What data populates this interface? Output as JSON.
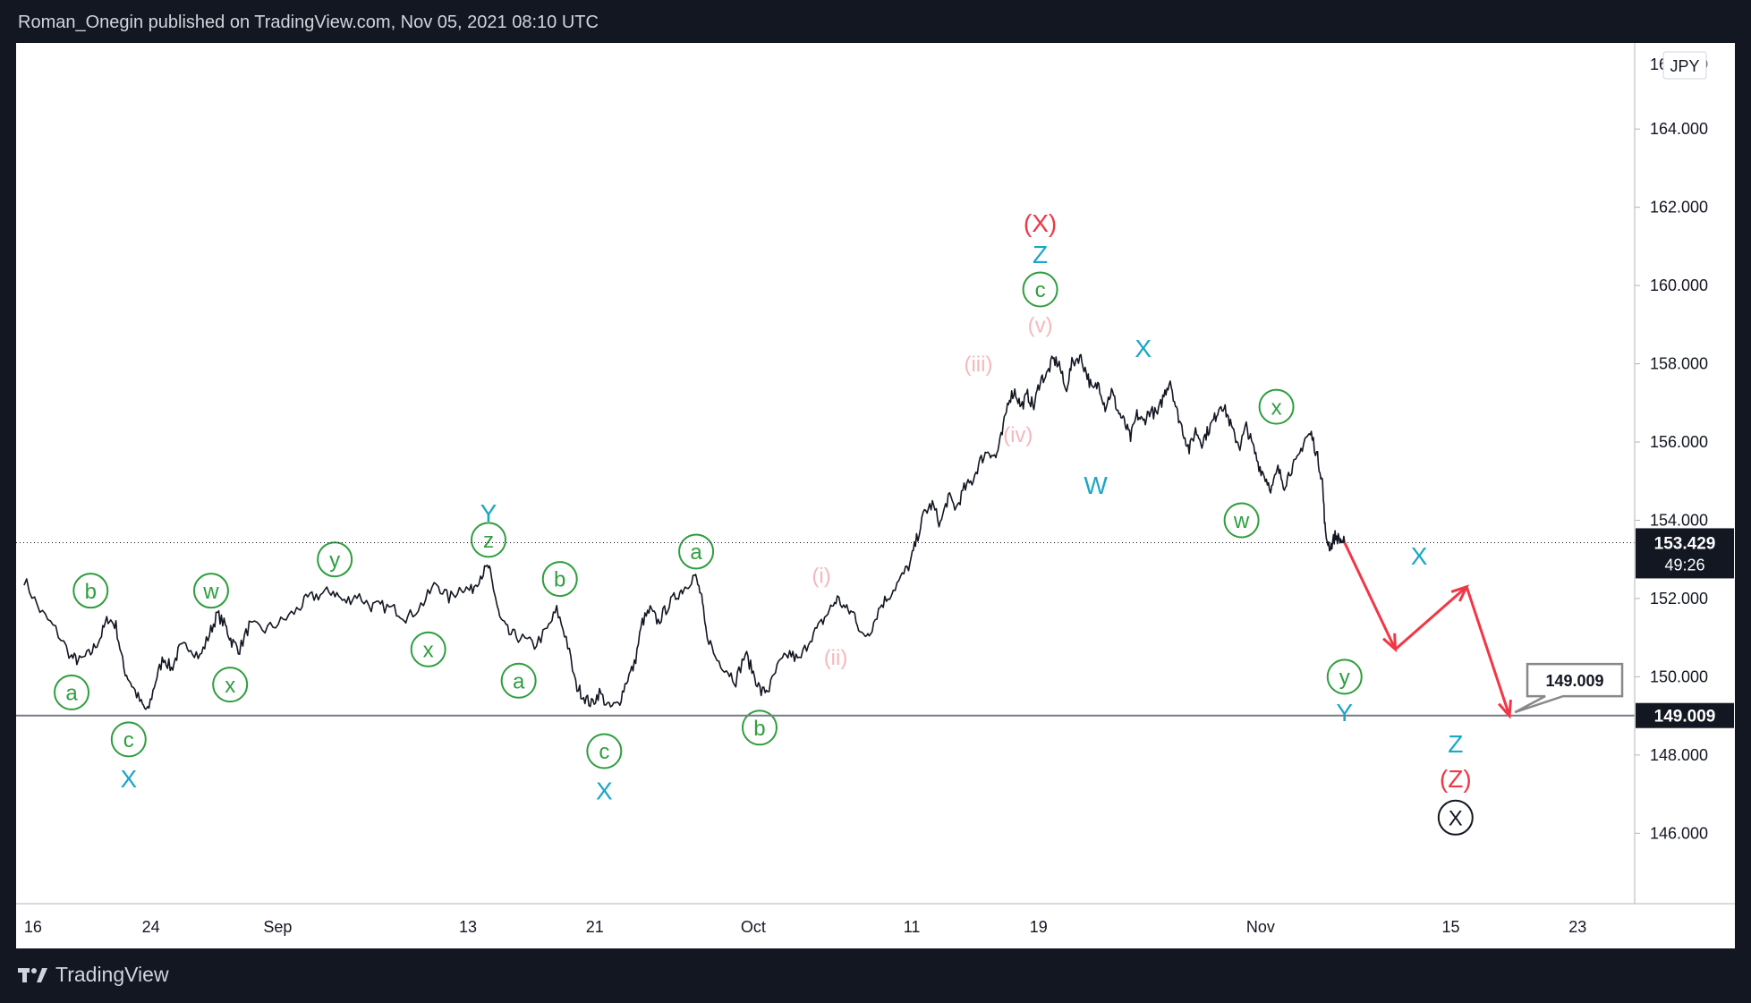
{
  "header": {
    "publisher_line": "Roman_Onegin published on TradingView.com, Nov 05, 2021 08:10 UTC"
  },
  "footer": {
    "brand": "TradingView"
  },
  "currency_badge": "JPY",
  "current_price": {
    "value": "153.429",
    "countdown": "49:26"
  },
  "target_price": {
    "value": "149.009"
  },
  "chart_data": {
    "type": "line",
    "x_ticks": [
      "16",
      "24",
      "Sep",
      "13",
      "21",
      "Oct",
      "11",
      "19",
      "Nov",
      "15",
      "23"
    ],
    "x_tick_days": [
      0,
      8,
      16,
      28,
      36,
      46,
      56,
      64,
      78,
      90,
      98
    ],
    "y_ticks": [
      "146.000",
      "148.000",
      "150.000",
      "152.000",
      "154.000",
      "156.000",
      "158.000",
      "160.000",
      "162.000",
      "164.000"
    ],
    "ylim": [
      144.2,
      166.2
    ],
    "xlim": [
      -0.5,
      101.6
    ],
    "last_price": 153.429,
    "support_level": 149.009,
    "colors": {
      "price_line": "#131722",
      "minor_wave": "#2e9e3e",
      "intermediate_wave": "#1aa7c8",
      "subwave": "#f5b7bd",
      "primary_wave": "#f23645",
      "projection": "#f23645"
    },
    "price_path": [
      [
        0,
        152.5
      ],
      [
        1,
        151.7
      ],
      [
        2,
        151.2
      ],
      [
        3,
        150.5
      ],
      [
        3.5,
        150.4
      ],
      [
        4.2,
        150.6
      ],
      [
        4.8,
        151.0
      ],
      [
        5.3,
        151.5
      ],
      [
        5.8,
        151.3
      ],
      [
        6.3,
        150.2
      ],
      [
        6.8,
        149.8
      ],
      [
        7.4,
        149.3
      ],
      [
        7.8,
        149.1
      ],
      [
        8.3,
        149.9
      ],
      [
        8.8,
        150.5
      ],
      [
        9.3,
        150.2
      ],
      [
        9.8,
        150.7
      ],
      [
        10.4,
        150.8
      ],
      [
        11.1,
        150.5
      ],
      [
        11.7,
        151.1
      ],
      [
        12.2,
        151.6
      ],
      [
        12.7,
        151.3
      ],
      [
        13.1,
        150.9
      ],
      [
        13.6,
        150.7
      ],
      [
        14.2,
        151.3
      ],
      [
        15.2,
        151.2
      ],
      [
        16.2,
        151.4
      ],
      [
        17.2,
        151.7
      ],
      [
        17.9,
        152.0
      ],
      [
        18.7,
        152.1
      ],
      [
        19.5,
        152.2
      ],
      [
        20.2,
        151.9
      ],
      [
        21.0,
        152.1
      ],
      [
        21.9,
        151.8
      ],
      [
        22.6,
        151.8
      ],
      [
        23.5,
        151.7
      ],
      [
        24.2,
        151.5
      ],
      [
        25.2,
        151.9
      ],
      [
        26.0,
        152.4
      ],
      [
        26.8,
        152.0
      ],
      [
        27.6,
        152.3
      ],
      [
        28.2,
        152.2
      ],
      [
        28.8,
        152.6
      ],
      [
        29.3,
        152.8
      ],
      [
        29.6,
        152.3
      ],
      [
        30.0,
        151.5
      ],
      [
        30.6,
        151.1
      ],
      [
        31.3,
        151.0
      ],
      [
        32.2,
        150.8
      ],
      [
        33.0,
        151.2
      ],
      [
        33.6,
        151.7
      ],
      [
        34.2,
        151.0
      ],
      [
        34.8,
        149.8
      ],
      [
        35.3,
        149.5
      ],
      [
        35.8,
        149.3
      ],
      [
        36.3,
        149.6
      ],
      [
        36.9,
        149.2
      ],
      [
        37.5,
        149.3
      ],
      [
        38.0,
        149.9
      ],
      [
        38.5,
        150.3
      ],
      [
        39.0,
        151.4
      ],
      [
        39.5,
        151.7
      ],
      [
        40.0,
        151.4
      ],
      [
        40.6,
        151.8
      ],
      [
        41.2,
        152.1
      ],
      [
        41.7,
        152.3
      ],
      [
        42.3,
        152.6
      ],
      [
        42.7,
        152.1
      ],
      [
        43.0,
        151.2
      ],
      [
        43.6,
        150.5
      ],
      [
        44.3,
        150.2
      ],
      [
        44.9,
        149.9
      ],
      [
        45.5,
        150.6
      ],
      [
        46.0,
        150.1
      ],
      [
        46.5,
        149.6
      ],
      [
        47.0,
        149.7
      ],
      [
        47.6,
        150.3
      ],
      [
        48.3,
        150.6
      ],
      [
        48.9,
        150.4
      ],
      [
        49.6,
        151.0
      ],
      [
        50.2,
        151.3
      ],
      [
        50.8,
        151.7
      ],
      [
        51.3,
        152.0
      ],
      [
        51.9,
        151.7
      ],
      [
        52.4,
        151.6
      ],
      [
        52.9,
        151.0
      ],
      [
        53.4,
        151.2
      ],
      [
        54.0,
        151.8
      ],
      [
        54.6,
        152.1
      ],
      [
        55.3,
        152.5
      ],
      [
        55.9,
        152.9
      ],
      [
        56.3,
        153.5
      ],
      [
        56.8,
        154.2
      ],
      [
        57.3,
        154.4
      ],
      [
        57.8,
        153.9
      ],
      [
        58.3,
        154.6
      ],
      [
        58.8,
        154.3
      ],
      [
        59.3,
        154.8
      ],
      [
        59.8,
        155.0
      ],
      [
        60.3,
        155.5
      ],
      [
        60.8,
        155.8
      ],
      [
        61.3,
        155.6
      ],
      [
        61.7,
        156.2
      ],
      [
        62.1,
        157.1
      ],
      [
        62.5,
        157.3
      ],
      [
        62.9,
        156.9
      ],
      [
        63.3,
        157.2
      ],
      [
        63.7,
        156.9
      ],
      [
        64.1,
        157.6
      ],
      [
        64.5,
        157.7
      ],
      [
        64.9,
        158.1
      ],
      [
        65.3,
        158.0
      ],
      [
        65.7,
        157.3
      ],
      [
        66.1,
        158.0
      ],
      [
        66.6,
        158.2
      ],
      [
        67.0,
        157.8
      ],
      [
        67.4,
        157.3
      ],
      [
        67.8,
        157.5
      ],
      [
        68.2,
        156.9
      ],
      [
        68.6,
        157.3
      ],
      [
        69.0,
        156.8
      ],
      [
        69.4,
        156.5
      ],
      [
        69.8,
        156.1
      ],
      [
        70.2,
        156.7
      ],
      [
        70.6,
        156.5
      ],
      [
        71.0,
        156.8
      ],
      [
        71.5,
        156.7
      ],
      [
        71.9,
        157.2
      ],
      [
        72.3,
        157.6
      ],
      [
        72.7,
        156.8
      ],
      [
        73.1,
        156.3
      ],
      [
        73.5,
        155.8
      ],
      [
        73.9,
        156.3
      ],
      [
        74.3,
        156.0
      ],
      [
        74.7,
        156.3
      ],
      [
        75.1,
        156.6
      ],
      [
        75.5,
        157.0
      ],
      [
        75.9,
        156.7
      ],
      [
        76.3,
        156.2
      ],
      [
        76.7,
        155.9
      ],
      [
        77.1,
        156.4
      ],
      [
        77.5,
        155.9
      ],
      [
        77.9,
        155.4
      ],
      [
        78.3,
        155.1
      ],
      [
        78.7,
        154.8
      ],
      [
        79.1,
        155.3
      ],
      [
        79.5,
        154.9
      ],
      [
        79.9,
        155.3
      ],
      [
        80.3,
        155.5
      ],
      [
        80.8,
        156.1
      ],
      [
        81.2,
        156.2
      ],
      [
        81.6,
        155.6
      ],
      [
        81.9,
        155.0
      ],
      [
        82.1,
        153.6
      ],
      [
        82.4,
        153.3
      ],
      [
        82.7,
        153.6
      ],
      [
        83.0,
        153.5
      ],
      [
        83.3,
        153.43
      ]
    ],
    "projection_path": [
      [
        83.3,
        153.43
      ],
      [
        86.5,
        150.7
      ],
      [
        91.0,
        152.3
      ],
      [
        93.7,
        149.0
      ]
    ]
  },
  "wave_labels": [
    {
      "text": "a",
      "circle": true,
      "wave": "minor",
      "x": 3.0,
      "y": 149.6
    },
    {
      "text": "b",
      "circle": true,
      "wave": "minor",
      "x": 4.2,
      "y": 152.2
    },
    {
      "text": "c",
      "circle": true,
      "wave": "minor",
      "x": 6.6,
      "y": 148.4
    },
    {
      "text": "X",
      "circle": false,
      "wave": "intermediate",
      "x": 6.6,
      "y": 147.4
    },
    {
      "text": "w",
      "circle": true,
      "wave": "minor",
      "x": 11.8,
      "y": 152.2
    },
    {
      "text": "x",
      "circle": true,
      "wave": "minor",
      "x": 13.0,
      "y": 149.8
    },
    {
      "text": "y",
      "circle": true,
      "wave": "minor",
      "x": 19.6,
      "y": 153.0
    },
    {
      "text": "x",
      "circle": true,
      "wave": "minor",
      "x": 25.5,
      "y": 150.7
    },
    {
      "text": "Y",
      "circle": false,
      "wave": "intermediate",
      "x": 29.3,
      "y": 154.2
    },
    {
      "text": "z",
      "circle": true,
      "wave": "minor",
      "x": 29.3,
      "y": 153.5
    },
    {
      "text": "a",
      "circle": true,
      "wave": "minor",
      "x": 31.2,
      "y": 149.9
    },
    {
      "text": "b",
      "circle": true,
      "wave": "minor",
      "x": 33.8,
      "y": 152.5
    },
    {
      "text": "c",
      "circle": true,
      "wave": "minor",
      "x": 36.6,
      "y": 148.1
    },
    {
      "text": "X",
      "circle": false,
      "wave": "intermediate",
      "x": 36.6,
      "y": 147.1
    },
    {
      "text": "a",
      "circle": true,
      "wave": "minor",
      "x": 42.4,
      "y": 153.2
    },
    {
      "text": "b",
      "circle": true,
      "wave": "minor",
      "x": 46.4,
      "y": 148.7
    },
    {
      "text": "(i)",
      "circle": false,
      "wave": "subwave",
      "x": 50.3,
      "y": 152.6
    },
    {
      "text": "(ii)",
      "circle": false,
      "wave": "subwave",
      "x": 51.2,
      "y": 150.5
    },
    {
      "text": "(iii)",
      "circle": false,
      "wave": "subwave",
      "x": 60.2,
      "y": 158.0
    },
    {
      "text": "(iv)",
      "circle": false,
      "wave": "subwave",
      "x": 62.7,
      "y": 156.2
    },
    {
      "text": "(v)",
      "circle": false,
      "wave": "subwave",
      "x": 64.1,
      "y": 159.0
    },
    {
      "text": "c",
      "circle": true,
      "wave": "minor",
      "x": 64.1,
      "y": 159.9
    },
    {
      "text": "Z",
      "circle": false,
      "wave": "intermediate",
      "x": 64.1,
      "y": 160.8
    },
    {
      "text": "(X)",
      "circle": false,
      "wave": "primary",
      "x": 64.1,
      "y": 161.6
    },
    {
      "text": "X",
      "circle": false,
      "wave": "intermediate",
      "x": 70.6,
      "y": 158.4
    },
    {
      "text": "W",
      "circle": false,
      "wave": "intermediate",
      "x": 67.6,
      "y": 154.9
    },
    {
      "text": "w",
      "circle": true,
      "wave": "minor",
      "x": 76.8,
      "y": 154.0
    },
    {
      "text": "x",
      "circle": true,
      "wave": "minor",
      "x": 79.0,
      "y": 156.9
    },
    {
      "text": "y",
      "circle": true,
      "wave": "minor",
      "x": 83.3,
      "y": 150.0
    },
    {
      "text": "Y",
      "circle": false,
      "wave": "intermediate",
      "x": 83.3,
      "y": 149.1
    },
    {
      "text": "X",
      "circle": false,
      "wave": "intermediate",
      "x": 88.0,
      "y": 153.1
    },
    {
      "text": "Z",
      "circle": false,
      "wave": "intermediate",
      "x": 90.3,
      "y": 148.3
    },
    {
      "text": "(Z)",
      "circle": false,
      "wave": "primary",
      "x": 90.3,
      "y": 147.4
    },
    {
      "text": "X",
      "circle": true,
      "wave": "black",
      "x": 90.3,
      "y": 146.4
    }
  ]
}
